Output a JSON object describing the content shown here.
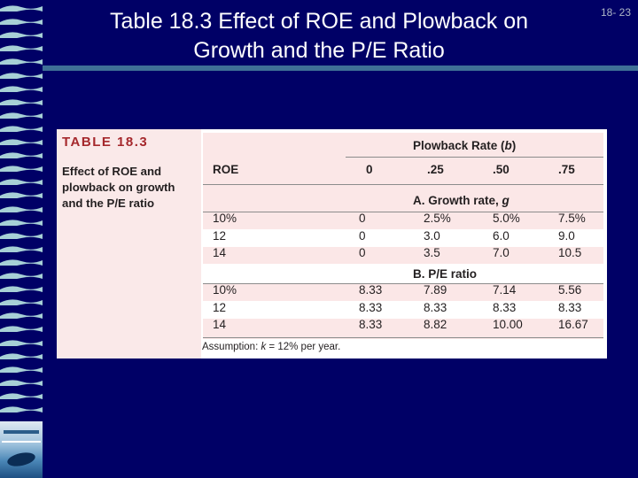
{
  "slide": {
    "title_line1": "Table 18.3 Effect of ROE and Plowback on",
    "title_line2": "Growth and the P/E Ratio",
    "number": "18- 23"
  },
  "figure": {
    "label": "TABLE 18.3",
    "caption": "Effect of ROE and plowback on growth and the P/E ratio",
    "plowback_header": "Plowback Rate (b)",
    "roe_header": "ROE",
    "plowback_rates": [
      "0",
      ".25",
      ".50",
      ".75"
    ],
    "section_a": "A. Growth rate, g",
    "section_b": "B. P/E ratio",
    "growth_rows": [
      {
        "roe": "10%",
        "values": [
          "0",
          "2.5%",
          "5.0%",
          "7.5%"
        ]
      },
      {
        "roe": "12",
        "values": [
          "0",
          "3.0",
          "6.0",
          "9.0"
        ]
      },
      {
        "roe": "14",
        "values": [
          "0",
          "3.5",
          "7.0",
          "10.5"
        ]
      }
    ],
    "pe_rows": [
      {
        "roe": "10%",
        "values": [
          "8.33",
          "7.89",
          "7.14",
          "5.56"
        ]
      },
      {
        "roe": "12",
        "values": [
          "8.33",
          "8.33",
          "8.33",
          "8.33"
        ]
      },
      {
        "roe": "14",
        "values": [
          "8.33",
          "8.82",
          "10.00",
          "16.67"
        ]
      }
    ],
    "note": "Assumption: k = 12% per year."
  },
  "colors": {
    "background": "#000066",
    "title_text": "#ffffff",
    "table_label": "#a5282c",
    "row_tint": "#fbe7e7"
  }
}
